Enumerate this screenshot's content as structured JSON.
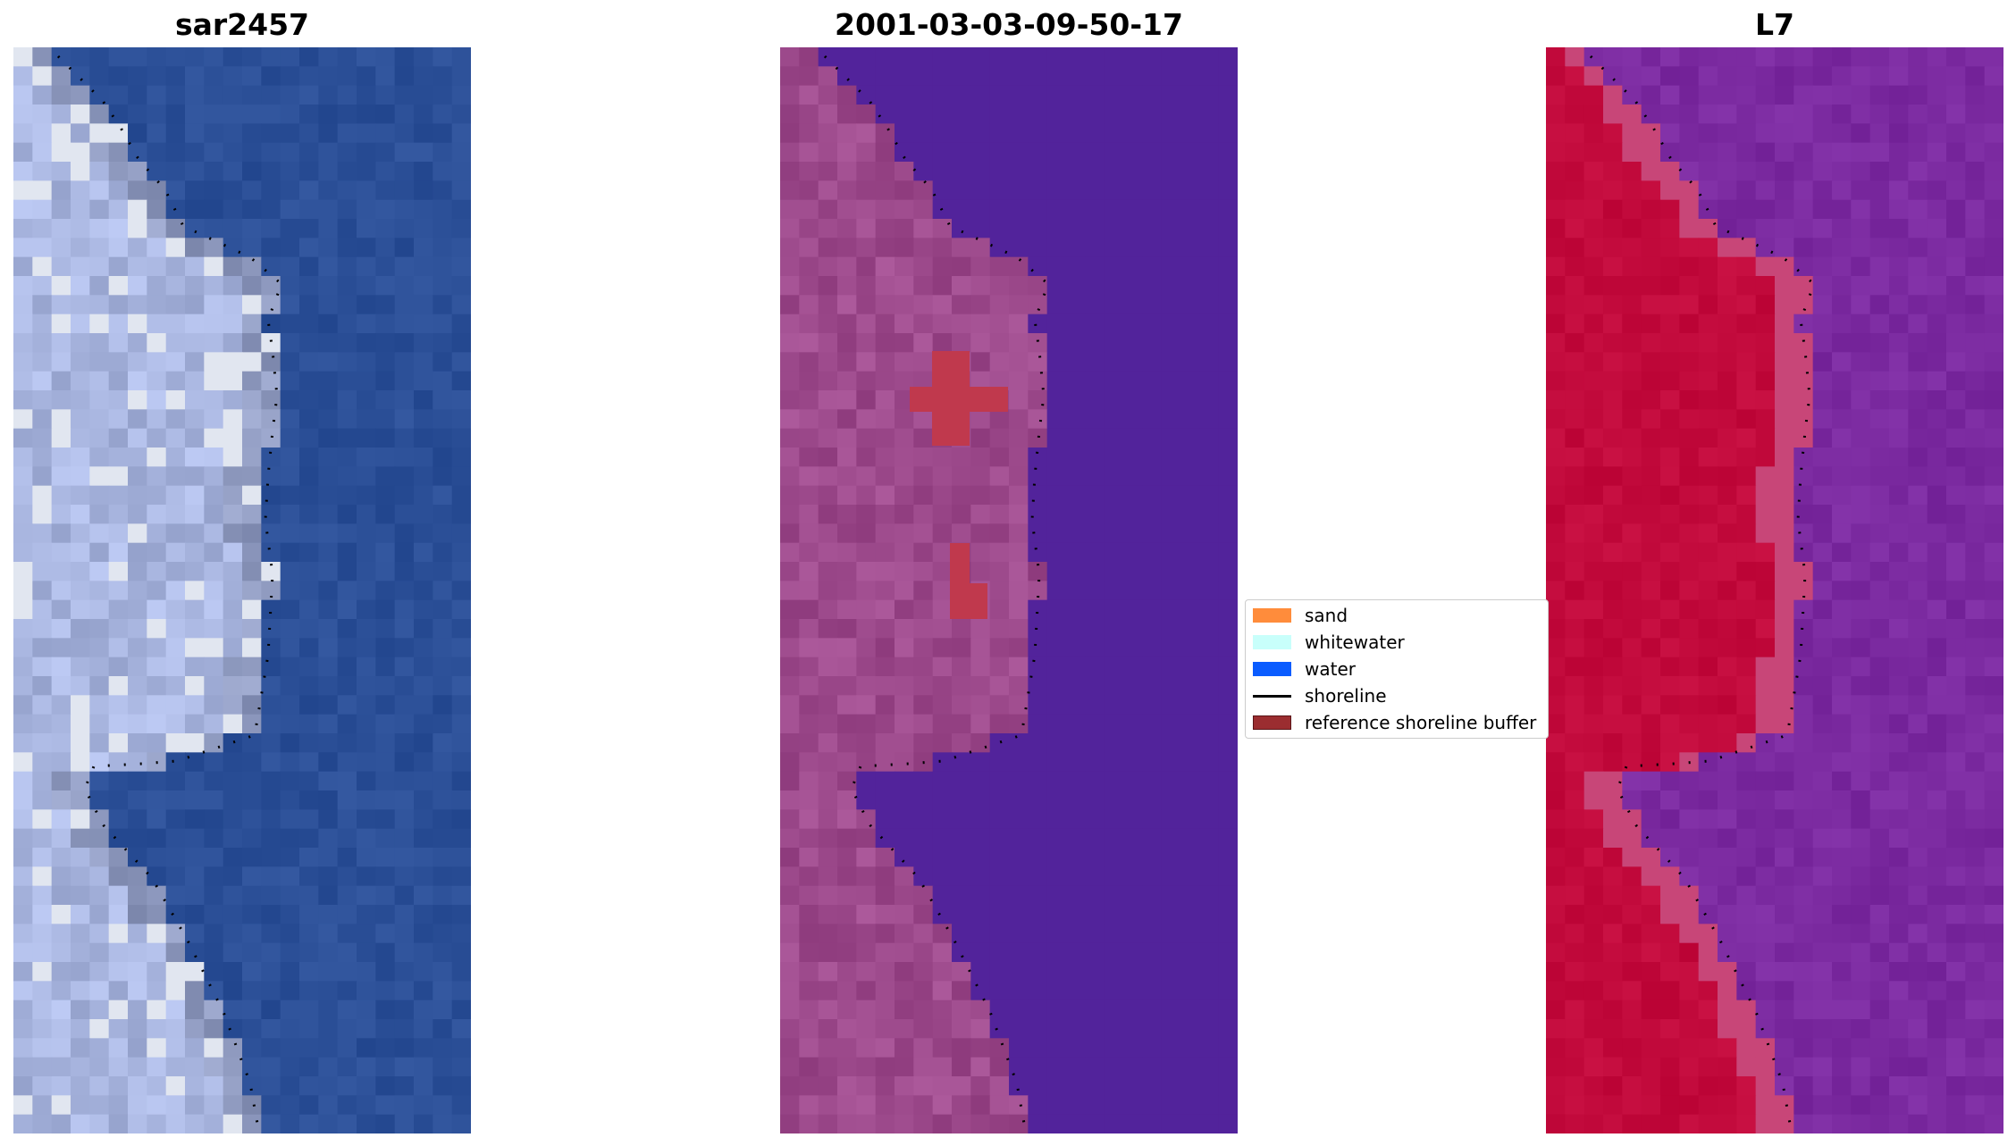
{
  "panels": [
    {
      "title": "sar2457",
      "type": "rgb"
    },
    {
      "title": "2001-03-03-09-50-17",
      "type": "classified"
    },
    {
      "title": "L7",
      "type": "index"
    }
  ],
  "legend": {
    "items": [
      {
        "label": "sand",
        "color": "#ff8c3b",
        "kind": "patch"
      },
      {
        "label": "whitewater",
        "color": "#c8fffb",
        "kind": "patch"
      },
      {
        "label": "water",
        "color": "#0a5cff",
        "kind": "patch"
      },
      {
        "label": "shoreline",
        "color": "#000000",
        "kind": "line"
      },
      {
        "label": "reference shoreline buffer",
        "color": "#9b2d30",
        "kind": "patch"
      }
    ]
  },
  "colors": {
    "rgb_water": "#2b4f97",
    "rgb_land": "#a9b6d6",
    "class_water": "#52239b",
    "class_land": "#9d4a8c",
    "class_buffer_overlay": "#c0394d",
    "index_water": "#7b2aa0",
    "index_land": "#c20a3c",
    "shoreline": "#000000"
  }
}
